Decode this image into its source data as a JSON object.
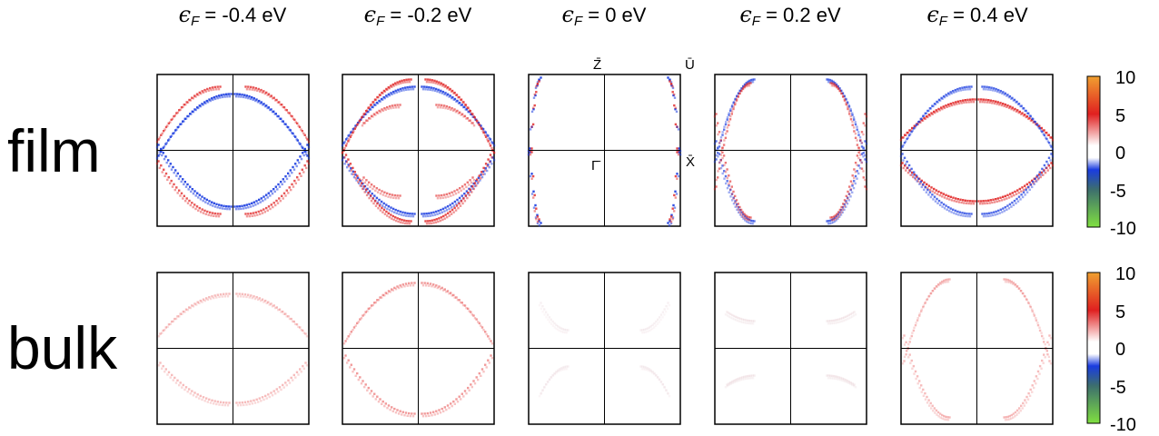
{
  "columns": [
    {
      "prefix": "ϵ",
      "sub": "F",
      "value": " = -0.4 eV"
    },
    {
      "prefix": "ϵ",
      "sub": "F",
      "value": " = -0.2 eV"
    },
    {
      "prefix": "ϵ",
      "sub": "F",
      "value": " = 0 eV"
    },
    {
      "prefix": "ϵ",
      "sub": "F",
      "value": " = 0.2 eV"
    },
    {
      "prefix": "ϵ",
      "sub": "F",
      "value": " = 0.4 eV"
    }
  ],
  "rows": [
    {
      "label": "film"
    },
    {
      "label": "bulk"
    }
  ],
  "kpoints": {
    "top_left": "Z̄",
    "top_right": "Ū",
    "center": "Γ̄",
    "right_mid": "X̄"
  },
  "colors": {
    "positive": "#e02020",
    "negative": "#1a3ce0",
    "zero": "#ffffff",
    "high": "#f0a030",
    "low": "#80e040"
  },
  "chart_data": {
    "type": "heatmap",
    "colorbar": {
      "range": [
        -10,
        10
      ],
      "ticks": [
        "10",
        "5",
        "0",
        "-5",
        "-10"
      ],
      "stops": [
        {
          "value": 10,
          "color": "#f0a030"
        },
        {
          "value": 5,
          "color": "#e02020"
        },
        {
          "value": 0,
          "color": "#ffffff"
        },
        {
          "value": -5,
          "color": "#1a3ce0"
        },
        {
          "value": -7,
          "color": "#3c6e6e"
        },
        {
          "value": -10,
          "color": "#80e040"
        }
      ]
    },
    "panels": [
      {
        "row": "film",
        "fermi_energy": -0.4
      },
      {
        "row": "film",
        "fermi_energy": -0.2
      },
      {
        "row": "film",
        "fermi_energy": 0
      },
      {
        "row": "film",
        "fermi_energy": 0.2
      },
      {
        "row": "film",
        "fermi_energy": 0.4
      },
      {
        "row": "bulk",
        "fermi_energy": -0.4
      },
      {
        "row": "bulk",
        "fermi_energy": -0.2
      },
      {
        "row": "bulk",
        "fermi_energy": 0
      },
      {
        "row": "bulk",
        "fermi_energy": 0.2
      },
      {
        "row": "bulk",
        "fermi_energy": 0.4
      }
    ]
  }
}
